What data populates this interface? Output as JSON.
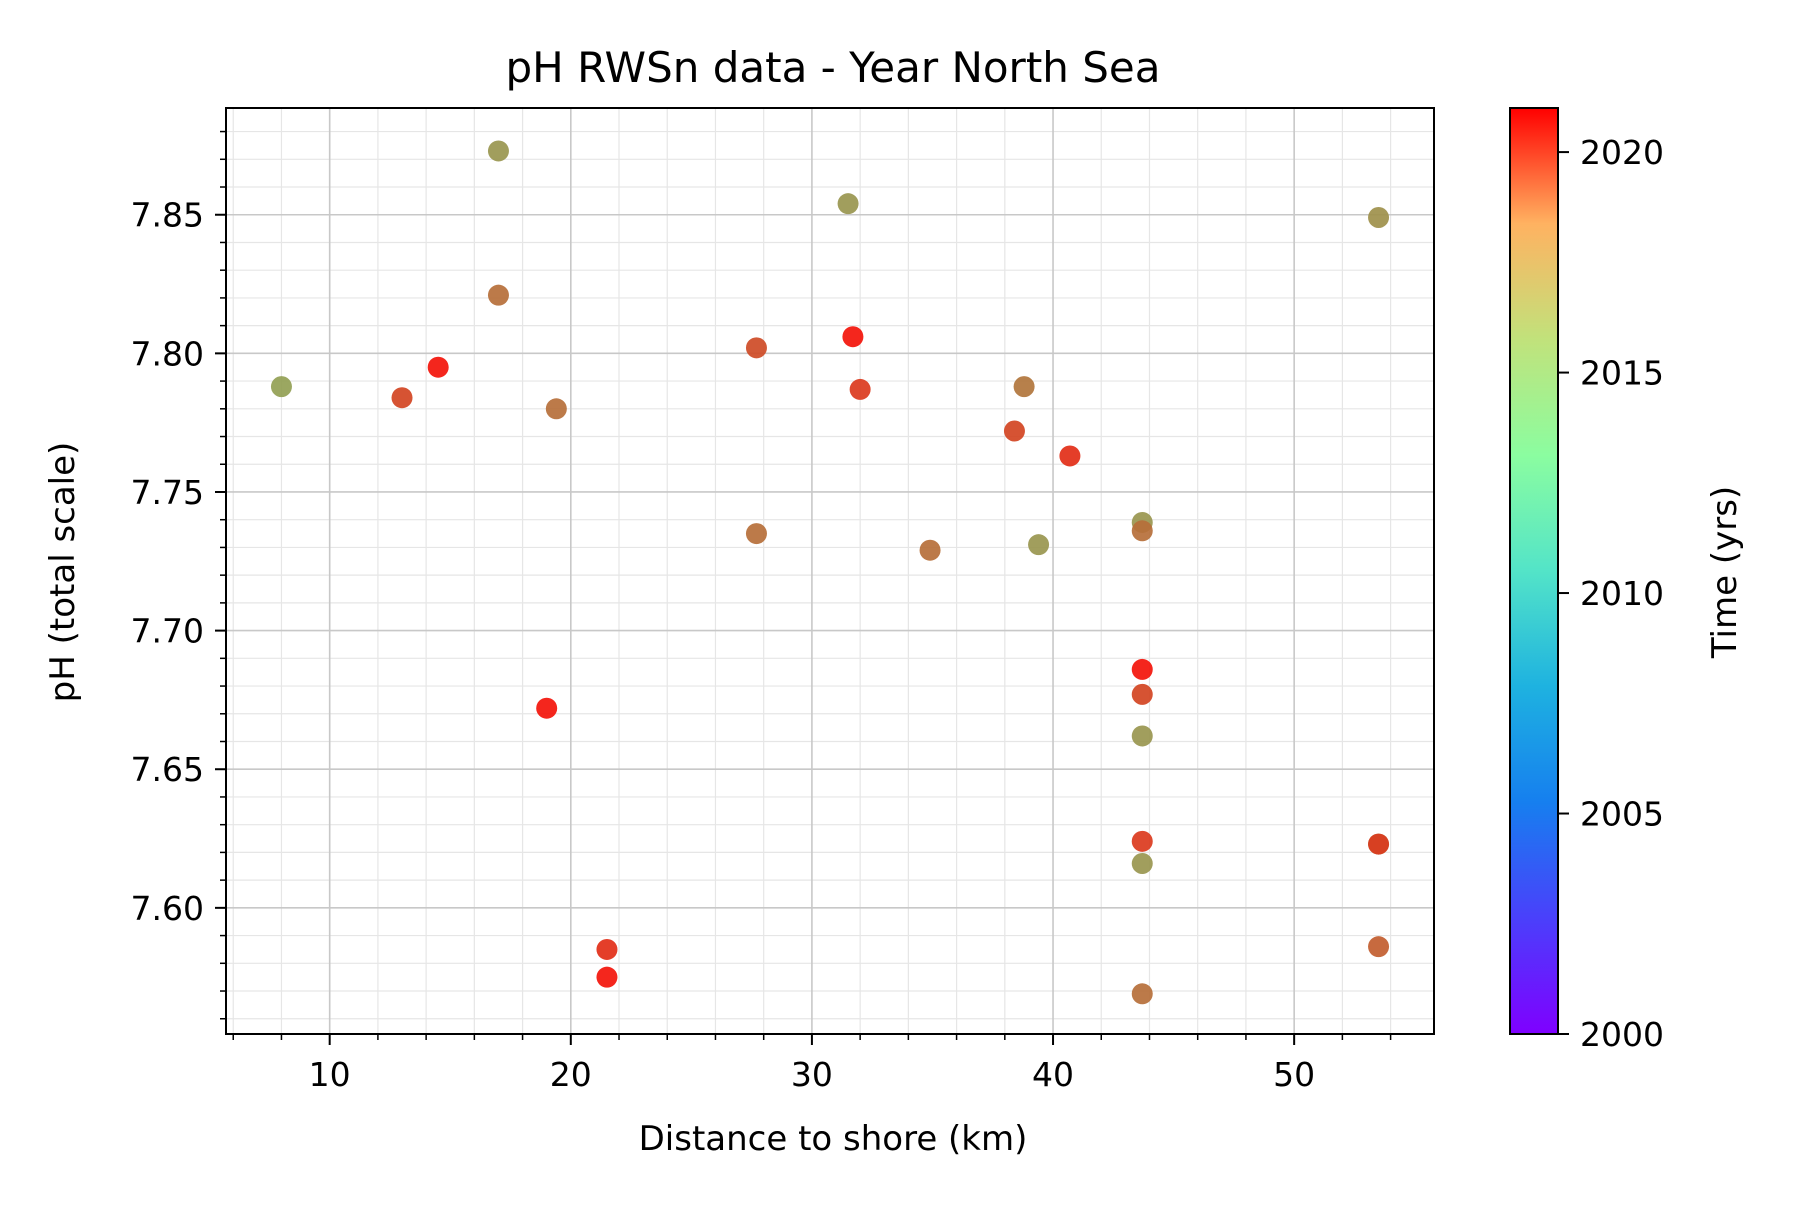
{
  "chart_data": {
    "type": "scatter",
    "title": "pH RWSn data - Year North Sea",
    "xlabel": "Distance to shore (km)",
    "ylabel": "pH (total scale)",
    "colorbar_label": "Time (yrs)",
    "xlim": [
      5.7,
      55.8
    ],
    "ylim": [
      7.5545,
      7.8885
    ],
    "clim": [
      2000,
      2021
    ],
    "colormap": "rainbow",
    "x_ticks": [
      10,
      20,
      30,
      40,
      50
    ],
    "y_ticks": [
      7.6,
      7.65,
      7.7,
      7.75,
      7.8,
      7.85
    ],
    "x_tick_labels": [
      "10",
      "20",
      "30",
      "40",
      "50"
    ],
    "y_tick_labels": [
      "7.60",
      "7.65",
      "7.70",
      "7.75",
      "7.80",
      "7.85"
    ],
    "colorbar_ticks": [
      2000,
      2005,
      2010,
      2015,
      2020
    ],
    "colorbar_tick_labels": [
      "2000",
      "2005",
      "2010",
      "2015",
      "2020"
    ],
    "grid": true,
    "points": [
      {
        "x": 8.0,
        "y": 7.788,
        "t": 2016.5
      },
      {
        "x": 13.0,
        "y": 7.784,
        "t": 2019.2
      },
      {
        "x": 14.5,
        "y": 7.795,
        "t": 2020.5
      },
      {
        "x": 17.0,
        "y": 7.873,
        "t": 2016.8
      },
      {
        "x": 17.0,
        "y": 7.821,
        "t": 2018.0
      },
      {
        "x": 19.0,
        "y": 7.672,
        "t": 2020.5
      },
      {
        "x": 19.4,
        "y": 7.78,
        "t": 2018.0
      },
      {
        "x": 21.5,
        "y": 7.585,
        "t": 2019.8
      },
      {
        "x": 21.5,
        "y": 7.575,
        "t": 2020.5
      },
      {
        "x": 27.7,
        "y": 7.802,
        "t": 2019.0
      },
      {
        "x": 27.7,
        "y": 7.735,
        "t": 2018.0
      },
      {
        "x": 31.5,
        "y": 7.854,
        "t": 2016.8
      },
      {
        "x": 31.7,
        "y": 7.806,
        "t": 2020.5
      },
      {
        "x": 32.0,
        "y": 7.787,
        "t": 2019.5
      },
      {
        "x": 34.9,
        "y": 7.729,
        "t": 2018.0
      },
      {
        "x": 38.4,
        "y": 7.772,
        "t": 2019.2
      },
      {
        "x": 38.8,
        "y": 7.788,
        "t": 2017.8
      },
      {
        "x": 39.4,
        "y": 7.731,
        "t": 2016.8
      },
      {
        "x": 40.7,
        "y": 7.763,
        "t": 2019.8
      },
      {
        "x": 43.7,
        "y": 7.739,
        "t": 2016.8
      },
      {
        "x": 43.7,
        "y": 7.736,
        "t": 2018.0
      },
      {
        "x": 43.7,
        "y": 7.686,
        "t": 2020.5
      },
      {
        "x": 43.7,
        "y": 7.677,
        "t": 2019.2
      },
      {
        "x": 43.7,
        "y": 7.662,
        "t": 2016.8
      },
      {
        "x": 43.7,
        "y": 7.624,
        "t": 2019.5
      },
      {
        "x": 43.7,
        "y": 7.616,
        "t": 2016.8
      },
      {
        "x": 43.7,
        "y": 7.569,
        "t": 2018.0
      },
      {
        "x": 53.5,
        "y": 7.849,
        "t": 2017.0
      },
      {
        "x": 53.5,
        "y": 7.623,
        "t": 2017.2
      },
      {
        "x": 53.5,
        "y": 7.623,
        "t": 2019.5
      },
      {
        "x": 53.5,
        "y": 7.586,
        "t": 2018.5
      }
    ]
  }
}
